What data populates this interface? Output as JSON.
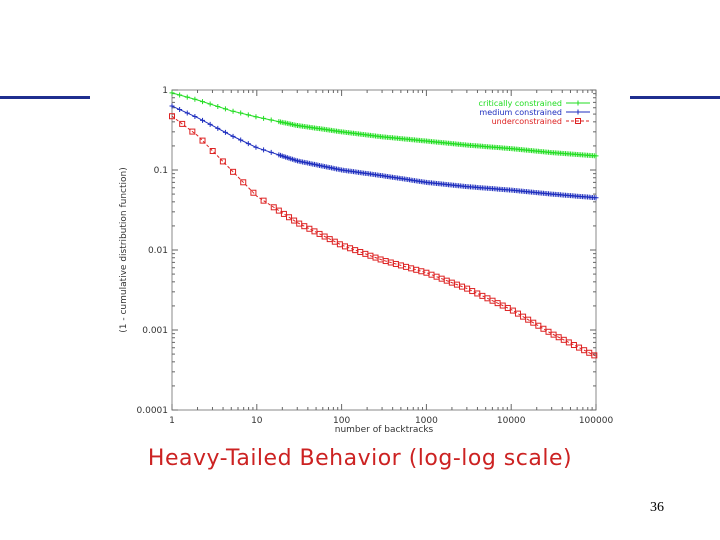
{
  "slide": {
    "caption": "Heavy-Tailed Behavior (log-log scale)",
    "page_number": "36"
  },
  "chart_data": {
    "type": "line",
    "title": "",
    "xlabel": "number of backtracks",
    "ylabel": "(1 - cumulative distribution function)",
    "x_scale": "log",
    "y_scale": "log",
    "xlim": [
      1,
      100000
    ],
    "ylim": [
      0.0001,
      1
    ],
    "x_ticks": [
      {
        "value": 1,
        "label": "1"
      },
      {
        "value": 10,
        "label": "10"
      },
      {
        "value": 100,
        "label": "100"
      },
      {
        "value": 1000,
        "label": "1000"
      },
      {
        "value": 10000,
        "label": "10000"
      },
      {
        "value": 100000,
        "label": "100000"
      }
    ],
    "y_ticks": [
      {
        "value": 1,
        "label": "1"
      },
      {
        "value": 0.1,
        "label": "0.1"
      },
      {
        "value": 0.01,
        "label": "0.01"
      },
      {
        "value": 0.001,
        "label": "0.001"
      },
      {
        "value": 0.0001,
        "label": "0.0001"
      }
    ],
    "grid": false,
    "legend_position": "top-right",
    "series": [
      {
        "name": "critically constrained",
        "color": "#22dd22",
        "marker": "plus",
        "points": [
          [
            1,
            0.92
          ],
          [
            2,
            0.75
          ],
          [
            5,
            0.55
          ],
          [
            10,
            0.46
          ],
          [
            30,
            0.36
          ],
          [
            100,
            0.3
          ],
          [
            300,
            0.26
          ],
          [
            1000,
            0.23
          ],
          [
            3000,
            0.205
          ],
          [
            10000,
            0.185
          ],
          [
            30000,
            0.165
          ],
          [
            100000,
            0.15
          ]
        ]
      },
      {
        "name": "medium constrained",
        "color": "#1f2fbf",
        "marker": "plus",
        "points": [
          [
            1,
            0.63
          ],
          [
            2,
            0.45
          ],
          [
            5,
            0.27
          ],
          [
            10,
            0.19
          ],
          [
            30,
            0.13
          ],
          [
            100,
            0.1
          ],
          [
            300,
            0.085
          ],
          [
            1000,
            0.07
          ],
          [
            3000,
            0.062
          ],
          [
            10000,
            0.056
          ],
          [
            30000,
            0.05
          ],
          [
            100000,
            0.045
          ]
        ]
      },
      {
        "name": "underconstrained",
        "color": "#dd2222",
        "marker": "square",
        "points": [
          [
            1,
            0.47
          ],
          [
            2,
            0.27
          ],
          [
            5,
            0.1
          ],
          [
            10,
            0.047
          ],
          [
            30,
            0.022
          ],
          [
            100,
            0.0115
          ],
          [
            300,
            0.0075
          ],
          [
            1000,
            0.0052
          ],
          [
            3000,
            0.0033
          ],
          [
            10000,
            0.0018
          ],
          [
            30000,
            0.0009
          ],
          [
            100000,
            0.00047
          ]
        ]
      }
    ]
  }
}
